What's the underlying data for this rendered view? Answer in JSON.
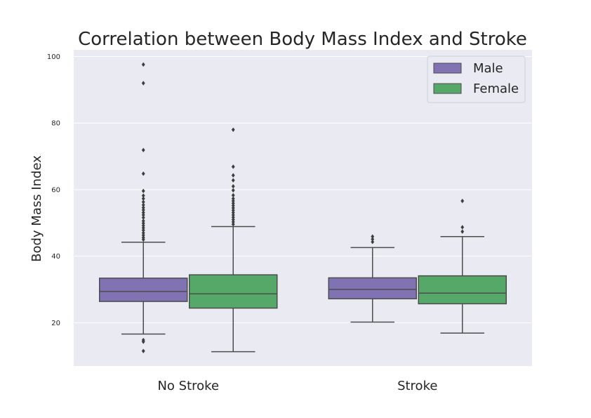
{
  "chart_data": {
    "type": "box",
    "title": "Correlation between Body Mass Index and Stroke",
    "xlabel": "",
    "ylabel": "Body Mass Index",
    "ylim": [
      7,
      102
    ],
    "yticks": [
      20,
      40,
      60,
      80,
      100
    ],
    "grid": true,
    "legend_position": "top-right",
    "categories": [
      "No Stroke",
      "Stroke"
    ],
    "series": [
      {
        "name": "Male",
        "color": "#8172b3",
        "boxes": [
          {
            "whisker_low": 16.6,
            "q1": 26.4,
            "median": 29.4,
            "q3": 33.4,
            "whisker_high": 44.2,
            "outliers": [
              11.5,
              14.3,
              14.8,
              45.0,
              45.6,
              46.3,
              47.0,
              47.8,
              48.5,
              49.2,
              49.9,
              50.6,
              51.6,
              52.4,
              53.1,
              53.9,
              54.6,
              55.4,
              56.3,
              57.3,
              58.2,
              59.6,
              64.8,
              71.9,
              92.0,
              97.6
            ]
          },
          {
            "whisker_low": 20.2,
            "q1": 27.2,
            "median": 30.0,
            "q3": 33.5,
            "whisker_high": 42.6,
            "outliers": [
              44.3,
              45.1,
              45.9
            ]
          }
        ]
      },
      {
        "name": "Female",
        "color": "#55a868",
        "boxes": [
          {
            "whisker_low": 11.3,
            "q1": 24.4,
            "median": 28.7,
            "q3": 34.4,
            "whisker_high": 48.9,
            "outliers": [
              49.6,
              50.3,
              51.0,
              51.7,
              52.4,
              53.1,
              53.8,
              54.5,
              55.2,
              55.9,
              56.6,
              57.3,
              58.3,
              59.8,
              61.0,
              62.8,
              64.3,
              66.9,
              78.0
            ]
          },
          {
            "whisker_low": 16.9,
            "q1": 25.7,
            "median": 28.9,
            "q3": 34.1,
            "whisker_high": 45.9,
            "outliers": [
              47.4,
              48.7,
              56.6
            ]
          }
        ]
      }
    ]
  }
}
